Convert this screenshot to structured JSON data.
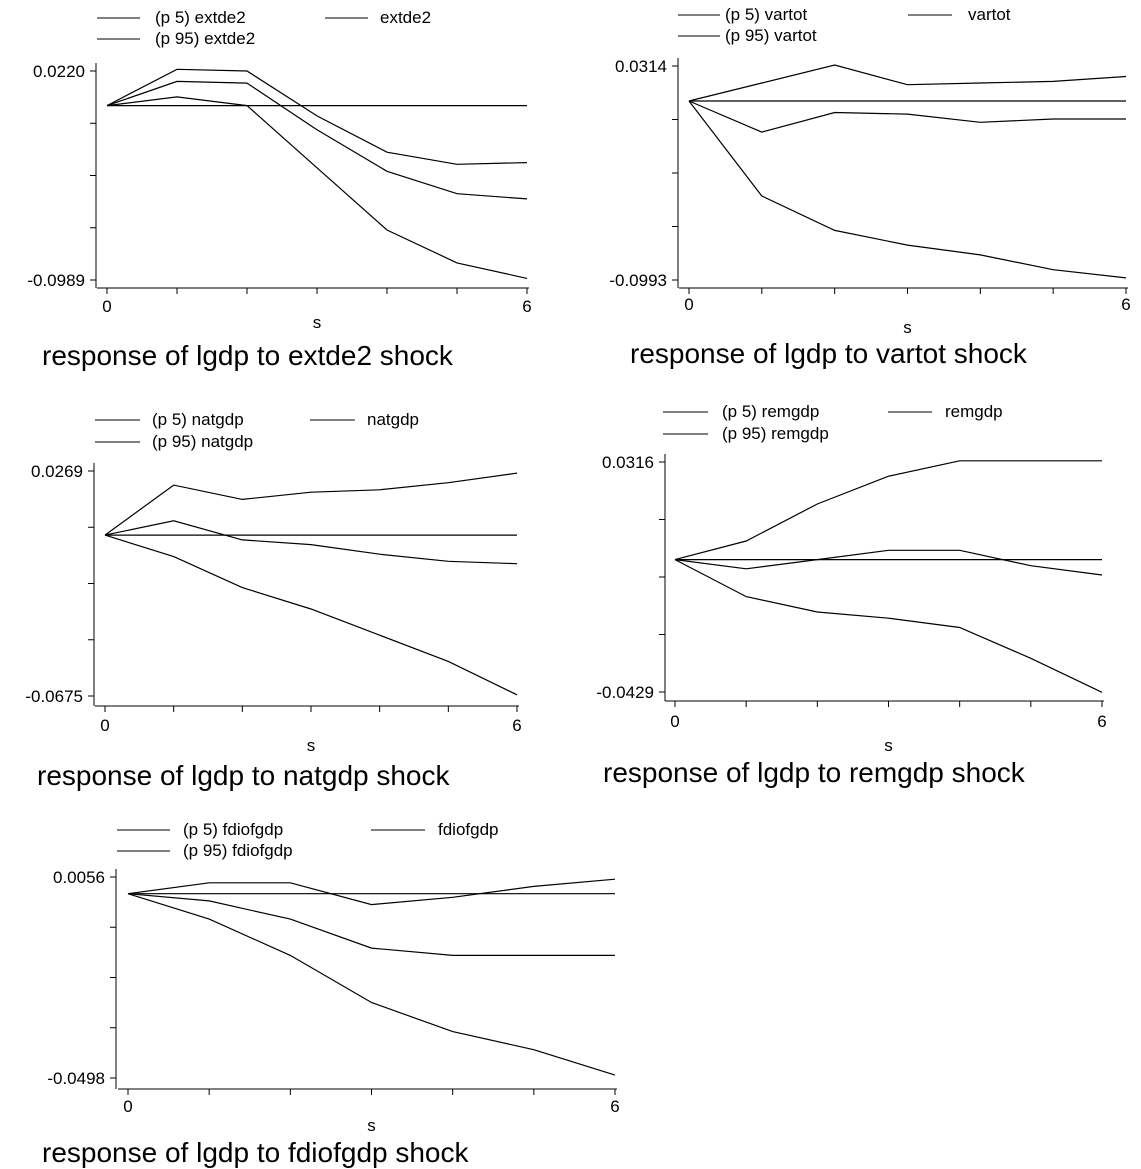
{
  "chart_data": [
    {
      "type": "line",
      "title": "response of lgdp to extde2 shock",
      "xlabel": "s",
      "x": [
        0,
        1,
        2,
        3,
        4,
        5,
        6
      ],
      "xticks": [
        "0",
        "6"
      ],
      "yticks": [
        "0.0220",
        "-0.0989"
      ],
      "ylim": [
        -0.0989,
        0.022
      ],
      "legend": [
        "(p 5) extde2",
        "extde2",
        "(p 95) extde2"
      ],
      "series": [
        {
          "name": "(p 5) extde2",
          "values": [
            0.002,
            0.016,
            0.015,
            -0.012,
            -0.036,
            -0.049,
            -0.052
          ]
        },
        {
          "name": "extde2",
          "values": [
            0.002,
            0.002,
            0.002,
            0.002,
            0.002,
            0.002,
            0.002
          ]
        },
        {
          "name": "(p 95) extde2",
          "values": [
            0.002,
            0.007,
            0.002,
            -0.034,
            -0.07,
            -0.089,
            -0.098
          ]
        },
        {
          "name": "",
          "values": [
            0.002,
            0.023,
            0.022,
            -0.004,
            -0.025,
            -0.032,
            -0.031
          ]
        }
      ]
    },
    {
      "type": "line",
      "title": "response of lgdp to vartot shock",
      "xlabel": "s",
      "x": [
        0,
        1,
        2,
        3,
        4,
        5,
        6
      ],
      "xticks": [
        "0",
        "6"
      ],
      "yticks": [
        "0.0314",
        "-0.0993"
      ],
      "ylim": [
        -0.0993,
        0.0314
      ],
      "legend": [
        "(p 5) vartot",
        "vartot",
        "(p 95) vartot"
      ],
      "series": [
        {
          "name": "(p 5) vartot",
          "values": [
            0.01,
            0.021,
            0.032,
            0.02,
            0.021,
            0.022,
            0.025
          ]
        },
        {
          "name": "vartot",
          "values": [
            0.01,
            0.01,
            0.01,
            0.01,
            0.01,
            0.01,
            0.01
          ]
        },
        {
          "name": "(p 95) vartot",
          "values": [
            0.01,
            -0.048,
            -0.069,
            -0.078,
            -0.084,
            -0.093,
            -0.098
          ]
        },
        {
          "name": "",
          "values": [
            0.01,
            -0.009,
            0.003,
            0.002,
            -0.003,
            -0.001,
            -0.001
          ]
        }
      ]
    },
    {
      "type": "line",
      "title": "response of lgdp to natgdp shock",
      "xlabel": "s",
      "x": [
        0,
        1,
        2,
        3,
        4,
        5,
        6
      ],
      "xticks": [
        "0",
        "6"
      ],
      "yticks": [
        "0.0269",
        "-0.0675"
      ],
      "ylim": [
        -0.0675,
        0.0269
      ],
      "legend": [
        "(p 5) natgdp",
        "natgdp",
        "(p 95) natgdp"
      ],
      "series": [
        {
          "name": "(p 5) natgdp",
          "values": [
            0.0,
            0.021,
            0.015,
            0.018,
            0.019,
            0.022,
            0.026
          ]
        },
        {
          "name": "natgdp",
          "values": [
            0.0,
            0.0,
            0.0,
            0.0,
            0.0,
            0.0,
            0.0
          ]
        },
        {
          "name": "(p 95) natgdp",
          "values": [
            0.0,
            -0.009,
            -0.022,
            -0.031,
            -0.042,
            -0.053,
            -0.067
          ]
        },
        {
          "name": "",
          "values": [
            0.0,
            0.006,
            -0.002,
            -0.004,
            -0.008,
            -0.011,
            -0.012
          ]
        }
      ]
    },
    {
      "type": "line",
      "title": "response of lgdp to remgdp shock",
      "xlabel": "s",
      "x": [
        0,
        1,
        2,
        3,
        4,
        5,
        6
      ],
      "xticks": [
        "0",
        "6"
      ],
      "yticks": [
        "0.0316",
        "-0.0429"
      ],
      "ylim": [
        -0.0429,
        0.0316
      ],
      "legend": [
        "(p 5) remgdp",
        "remgdp",
        "(p 95) remgdp"
      ],
      "series": [
        {
          "name": "(p 5) remgdp",
          "values": [
            0.0,
            0.006,
            0.018,
            0.027,
            0.032,
            0.032,
            0.032
          ]
        },
        {
          "name": "remgdp",
          "values": [
            0.0,
            0.0,
            0.0,
            0.0,
            0.0,
            0.0,
            0.0
          ]
        },
        {
          "name": "(p 95) remgdp",
          "values": [
            0.0,
            -0.012,
            -0.017,
            -0.019,
            -0.022,
            -0.032,
            -0.043
          ]
        },
        {
          "name": "",
          "values": [
            0.0,
            -0.003,
            0.0,
            0.003,
            0.003,
            -0.002,
            -0.005
          ]
        }
      ]
    },
    {
      "type": "line",
      "title": "response of lgdp to fdiofgdp shock",
      "xlabel": "s",
      "x": [
        0,
        1,
        2,
        3,
        4,
        5,
        6
      ],
      "xticks": [
        "0",
        "6"
      ],
      "yticks": [
        "0.0056",
        "-0.0498"
      ],
      "ylim": [
        -0.0498,
        0.0056
      ],
      "legend": [
        "(p 5) fdiofgdp",
        "fdiofgdp",
        "(p 95) fdiofgdp"
      ],
      "series": [
        {
          "name": "(p 5) fdiofgdp",
          "values": [
            0.001,
            0.004,
            0.004,
            -0.002,
            0.0,
            0.003,
            0.005
          ]
        },
        {
          "name": "fdiofgdp",
          "values": [
            0.001,
            0.001,
            0.001,
            0.001,
            0.001,
            0.001,
            0.001
          ]
        },
        {
          "name": "(p 95) fdiofgdp",
          "values": [
            0.001,
            -0.006,
            -0.016,
            -0.029,
            -0.037,
            -0.042,
            -0.049
          ]
        },
        {
          "name": "",
          "values": [
            0.001,
            -0.001,
            -0.006,
            -0.014,
            -0.016,
            -0.016,
            -0.016
          ]
        }
      ]
    }
  ]
}
